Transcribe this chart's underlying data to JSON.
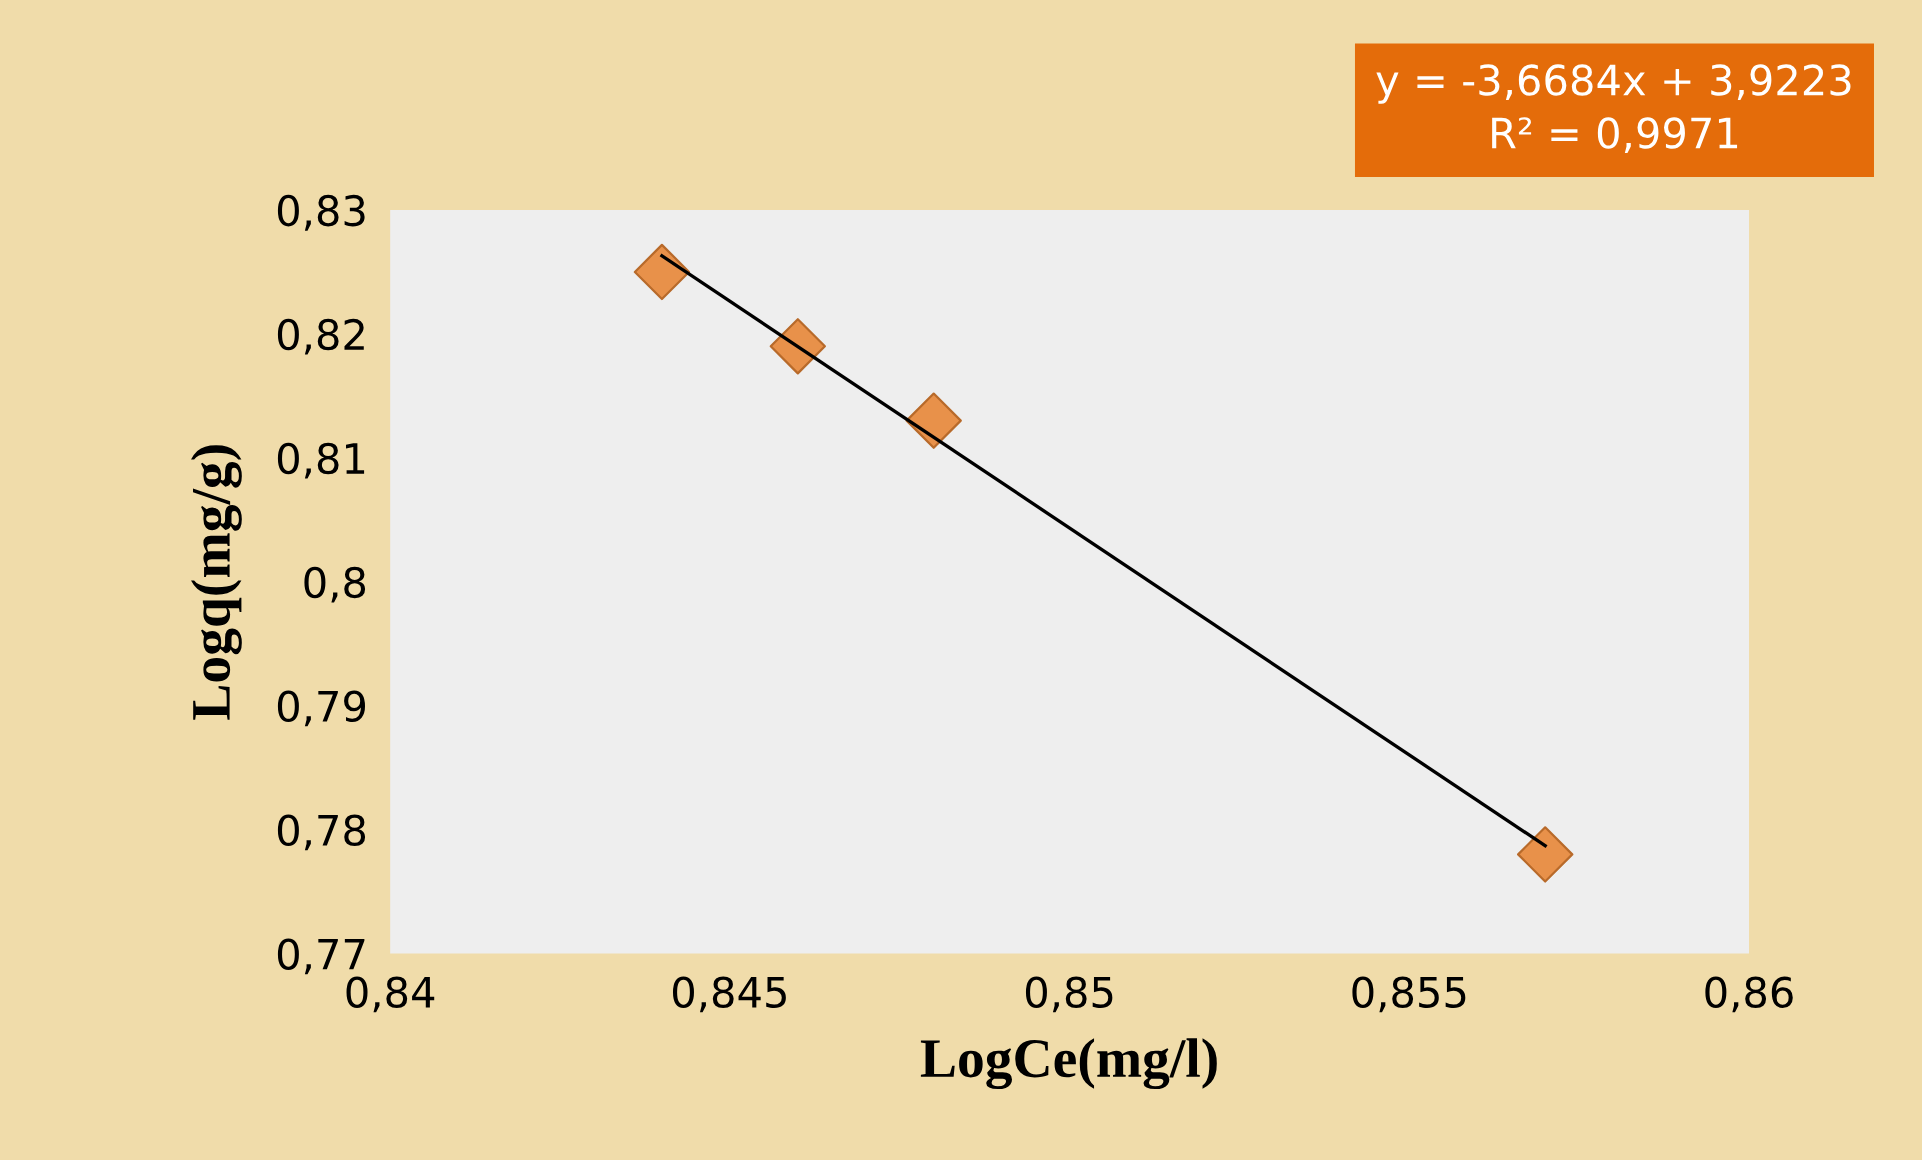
{
  "chart_data": {
    "type": "scatter",
    "xlabel": "LogCe(mg/l)",
    "ylabel": "Logq(mg/g)",
    "annotations": [
      "y = -3,6684x + 3,9223",
      "R² = 0,9971"
    ],
    "xlim": [
      0.84,
      0.86
    ],
    "ylim": [
      0.77,
      0.83
    ],
    "xticks": [
      {
        "value": 0.84,
        "label": "0,84"
      },
      {
        "value": 0.845,
        "label": "0,845"
      },
      {
        "value": 0.85,
        "label": "0,85"
      },
      {
        "value": 0.855,
        "label": "0,855"
      },
      {
        "value": 0.86,
        "label": "0,86"
      }
    ],
    "yticks": [
      {
        "value": 0.77,
        "label": "0,77"
      },
      {
        "value": 0.78,
        "label": "0,78"
      },
      {
        "value": 0.79,
        "label": "0,79"
      },
      {
        "value": 0.8,
        "label": "0,8"
      },
      {
        "value": 0.81,
        "label": "0,81"
      },
      {
        "value": 0.82,
        "label": "0,82"
      },
      {
        "value": 0.83,
        "label": "0,83"
      }
    ],
    "grid": false,
    "legend": false,
    "series": [
      {
        "color": "#e8914a",
        "marker": "diamond",
        "x": [
          0.844,
          0.846,
          0.848,
          0.857
        ],
        "values": [
          0.825,
          0.819,
          0.813,
          0.778
        ]
      },
      {
        "type": "line",
        "color": "#000000",
        "marker": "none",
        "line_style": "solid",
        "x": [
          0.844,
          0.857
        ],
        "values": [
          0.8263,
          0.7787
        ]
      }
    ]
  }
}
